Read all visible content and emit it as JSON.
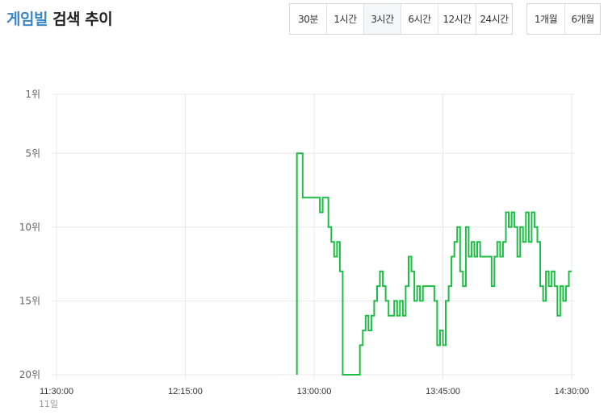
{
  "header": {
    "keyword": "게임빌",
    "title_rest": " 검색 추이"
  },
  "range_buttons": [
    {
      "label": "30분",
      "active": false
    },
    {
      "label": "1시간",
      "active": false
    },
    {
      "label": "3시간",
      "active": true
    },
    {
      "label": "6시간",
      "active": false
    },
    {
      "label": "12시간",
      "active": false
    },
    {
      "label": "24시간",
      "active": false
    }
  ],
  "period_buttons": [
    {
      "label": "1개월"
    },
    {
      "label": "6개월"
    }
  ],
  "colors": {
    "line": "#1ebd45",
    "grid": "#e8e8e8",
    "keyword": "#3d86c6"
  },
  "chart_data": {
    "type": "line",
    "step": true,
    "y_inverted": true,
    "ylim": [
      1,
      20
    ],
    "y_ticks": [
      1,
      5,
      10,
      15,
      20
    ],
    "y_tick_labels": [
      "1위",
      "5위",
      "10위",
      "15위",
      "20위"
    ],
    "x_range": [
      "11:30:00",
      "14:30:00"
    ],
    "x_ticks": [
      "11:30:00",
      "12:15:00",
      "13:00:00",
      "13:45:00",
      "14:30:00"
    ],
    "x_tick_labels": [
      "11:30:00",
      "12:15:00",
      "13:00:00",
      "13:45:00",
      "14:30:00"
    ],
    "x_sublabel": "11일",
    "grid": true,
    "series": [
      {
        "values": [
          [
            "12:54:00",
            20
          ],
          [
            "12:54:00",
            5
          ],
          [
            "12:56:00",
            8
          ],
          [
            "12:57:00",
            8
          ],
          [
            "12:58:00",
            8
          ],
          [
            "13:00:00",
            8
          ],
          [
            "13:01:00",
            8
          ],
          [
            "13:02:00",
            9
          ],
          [
            "13:03:00",
            8
          ],
          [
            "13:05:00",
            10
          ],
          [
            "13:06:00",
            11
          ],
          [
            "13:07:00",
            12
          ],
          [
            "13:08:00",
            11
          ],
          [
            "13:09:00",
            13
          ],
          [
            "13:10:00",
            20
          ],
          [
            "13:15:00",
            20
          ],
          [
            "13:16:00",
            18
          ],
          [
            "13:17:00",
            17
          ],
          [
            "13:18:00",
            16
          ],
          [
            "13:19:00",
            17
          ],
          [
            "13:20:00",
            16
          ],
          [
            "13:21:00",
            15
          ],
          [
            "13:22:00",
            14
          ],
          [
            "13:23:00",
            13
          ],
          [
            "13:24:00",
            14
          ],
          [
            "13:25:00",
            15
          ],
          [
            "13:26:00",
            16
          ],
          [
            "13:28:00",
            15
          ],
          [
            "13:29:00",
            16
          ],
          [
            "13:30:00",
            15
          ],
          [
            "13:31:00",
            16
          ],
          [
            "13:32:00",
            14
          ],
          [
            "13:33:00",
            12
          ],
          [
            "13:34:00",
            13
          ],
          [
            "13:35:00",
            15
          ],
          [
            "13:36:00",
            14
          ],
          [
            "13:37:00",
            15
          ],
          [
            "13:38:00",
            14
          ],
          [
            "13:42:00",
            15
          ],
          [
            "13:43:00",
            18
          ],
          [
            "13:44:00",
            17
          ],
          [
            "13:45:00",
            18
          ],
          [
            "13:46:00",
            15
          ],
          [
            "13:47:00",
            14
          ],
          [
            "13:48:00",
            12
          ],
          [
            "13:49:00",
            11
          ],
          [
            "13:50:00",
            10
          ],
          [
            "13:51:00",
            13
          ],
          [
            "13:52:00",
            14
          ],
          [
            "13:53:00",
            10
          ],
          [
            "13:54:00",
            12
          ],
          [
            "13:55:00",
            11
          ],
          [
            "13:56:00",
            12
          ],
          [
            "13:57:00",
            11
          ],
          [
            "13:58:00",
            12
          ],
          [
            "14:02:00",
            14
          ],
          [
            "14:03:00",
            12
          ],
          [
            "14:04:00",
            11
          ],
          [
            "14:05:00",
            12
          ],
          [
            "14:06:00",
            11
          ],
          [
            "14:07:00",
            9
          ],
          [
            "14:08:00",
            10
          ],
          [
            "14:09:00",
            9
          ],
          [
            "14:10:00",
            10
          ],
          [
            "14:11:00",
            12
          ],
          [
            "14:12:00",
            10
          ],
          [
            "14:13:00",
            11
          ],
          [
            "14:14:00",
            9
          ],
          [
            "14:15:00",
            11
          ],
          [
            "14:16:00",
            9
          ],
          [
            "14:17:00",
            10
          ],
          [
            "14:18:00",
            11
          ],
          [
            "14:19:00",
            14
          ],
          [
            "14:20:00",
            15
          ],
          [
            "14:21:00",
            13
          ],
          [
            "14:22:00",
            14
          ],
          [
            "14:23:00",
            13
          ],
          [
            "14:24:00",
            14
          ],
          [
            "14:25:00",
            16
          ],
          [
            "14:26:00",
            14
          ],
          [
            "14:27:00",
            15
          ],
          [
            "14:28:00",
            14
          ],
          [
            "14:29:00",
            13
          ],
          [
            "14:30:00",
            13
          ]
        ]
      }
    ]
  }
}
